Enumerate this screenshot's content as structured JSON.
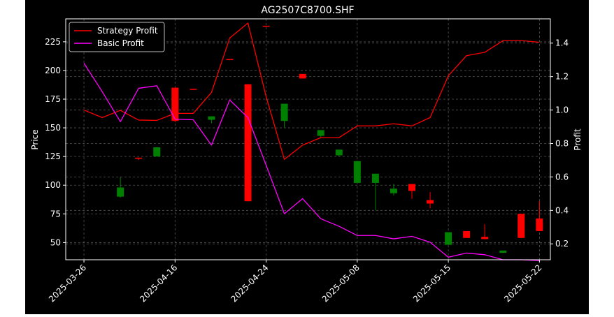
{
  "chart_data": {
    "type": "candlestick+line",
    "title": "AG2507C8700.SHF",
    "ylabel_left": "Price",
    "ylabel_right": "Profit",
    "ylim_left": [
      35,
      245
    ],
    "ylim_right": [
      0.105,
      1.545
    ],
    "yticks_left": [
      50,
      75,
      100,
      125,
      150,
      175,
      200,
      225
    ],
    "yticks_right": [
      0.2,
      0.4,
      0.6,
      0.8,
      1.0,
      1.2,
      1.4
    ],
    "xlim": [
      -1,
      25.6
    ],
    "grid": true,
    "legend_position": "top-left",
    "colors": {
      "background": "#000000",
      "strategy_line": "#ff0000",
      "basic_line": "#ff00ff",
      "up_candle": "#ff0000",
      "down_candle": "#008000",
      "grid": "#555555"
    },
    "x_ticks": [
      {
        "i": 0,
        "label": "2025-03-26"
      },
      {
        "i": 5,
        "label": "2025-04-16"
      },
      {
        "i": 10,
        "label": "2025-04-24"
      },
      {
        "i": 15,
        "label": "2025-05-08"
      },
      {
        "i": 20,
        "label": "2025-05-15"
      },
      {
        "i": 25,
        "label": "2025-05-22"
      }
    ],
    "candles": [
      {
        "i": 2,
        "open": 98,
        "high": 107,
        "low": 89,
        "close": 90
      },
      {
        "i": 3,
        "open": 123,
        "high": 124,
        "low": 122,
        "close": 124
      },
      {
        "i": 4,
        "open": 133,
        "high": 133,
        "low": 125,
        "close": 125
      },
      {
        "i": 5,
        "open": 156,
        "high": 185,
        "low": 155,
        "close": 185
      },
      {
        "i": 6,
        "open": 184,
        "high": 184,
        "low": 183,
        "close": 184
      },
      {
        "i": 7,
        "open": 160,
        "high": 160,
        "low": 154,
        "close": 157
      },
      {
        "i": 8,
        "open": 210,
        "high": 210,
        "low": 209,
        "close": 210
      },
      {
        "i": 9,
        "open": 86,
        "high": 188,
        "low": 86,
        "close": 188
      },
      {
        "i": 10,
        "open": 239,
        "high": 239,
        "low": 238,
        "close": 239
      },
      {
        "i": 11,
        "open": 171,
        "high": 171,
        "low": 150,
        "close": 156
      },
      {
        "i": 12,
        "open": 193,
        "high": 197,
        "low": 193,
        "close": 197
      },
      {
        "i": 13,
        "open": 148,
        "high": 148,
        "low": 142,
        "close": 143
      },
      {
        "i": 14,
        "open": 131,
        "high": 131,
        "low": 125,
        "close": 126
      },
      {
        "i": 15,
        "open": 121,
        "high": 121,
        "low": 102,
        "close": 102
      },
      {
        "i": 16,
        "open": 110,
        "high": 110,
        "low": 78,
        "close": 102
      },
      {
        "i": 17,
        "open": 97,
        "high": 101,
        "low": 91,
        "close": 93
      },
      {
        "i": 18,
        "open": 95,
        "high": 101,
        "low": 88,
        "close": 101
      },
      {
        "i": 19,
        "open": 84,
        "high": 94,
        "low": 80,
        "close": 87
      },
      {
        "i": 20,
        "open": 59,
        "high": 59,
        "low": 48,
        "close": 48
      },
      {
        "i": 21,
        "open": 54,
        "high": 60,
        "low": 54,
        "close": 60
      },
      {
        "i": 22,
        "open": 53,
        "high": 66,
        "low": 53,
        "close": 55
      },
      {
        "i": 23,
        "open": 43,
        "high": 43,
        "low": 41,
        "close": 41
      },
      {
        "i": 24,
        "open": 54,
        "high": 75,
        "low": 54,
        "close": 75
      },
      {
        "i": 25,
        "open": 60,
        "high": 86,
        "low": 60,
        "close": 71
      }
    ],
    "series": [
      {
        "name": "Strategy Profit",
        "axis": "right",
        "color": "#ff0000",
        "values": [
          1.0,
          0.955,
          0.998,
          0.94,
          0.938,
          0.98,
          0.98,
          1.105,
          1.43,
          1.52,
          1.08,
          0.705,
          0.79,
          0.835,
          0.835,
          0.905,
          0.905,
          0.918,
          0.905,
          0.955,
          1.205,
          1.325,
          1.345,
          1.415,
          1.415,
          1.405
        ]
      },
      {
        "name": "Basic Profit",
        "axis": "right",
        "color": "#ff00ff",
        "values": [
          1.28,
          1.11,
          0.93,
          1.13,
          1.145,
          0.945,
          0.942,
          0.79,
          1.06,
          0.955,
          0.67,
          0.38,
          0.47,
          0.35,
          0.305,
          0.25,
          0.25,
          0.23,
          0.245,
          0.21,
          0.12,
          0.145,
          0.135,
          0.105,
          0.105,
          0.1
        ]
      }
    ]
  }
}
